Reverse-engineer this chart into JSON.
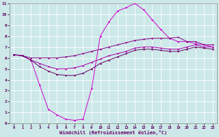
{
  "xlabel": "Windchill (Refroidissement éolien,°C)",
  "xlim": [
    -0.5,
    23.5
  ],
  "ylim": [
    0,
    11
  ],
  "xticks": [
    0,
    1,
    2,
    3,
    4,
    5,
    6,
    7,
    8,
    9,
    10,
    11,
    12,
    13,
    14,
    15,
    16,
    17,
    18,
    19,
    20,
    21,
    22,
    23
  ],
  "yticks": [
    0,
    1,
    2,
    3,
    4,
    5,
    6,
    7,
    8,
    9,
    10,
    11
  ],
  "bg_color": "#cce8e8",
  "grid_color": "#ffffff",
  "series": [
    {
      "x": [
        0,
        1,
        2,
        3,
        4,
        5,
        6,
        7,
        8,
        9,
        10,
        11,
        12,
        13,
        14,
        15,
        16,
        17,
        18,
        19,
        20,
        21,
        22,
        23
      ],
      "y": [
        6.3,
        6.2,
        5.8,
        3.5,
        1.3,
        0.8,
        0.4,
        0.3,
        0.4,
        3.2,
        8.0,
        9.3,
        10.3,
        10.6,
        11.0,
        10.4,
        9.5,
        8.6,
        7.8,
        7.5,
        7.5,
        7.3,
        7.2,
        7.0
      ],
      "color": "#cc00cc"
    },
    {
      "x": [
        0,
        1,
        2,
        3,
        4,
        5,
        6,
        7,
        8,
        9,
        10,
        11,
        12,
        13,
        14,
        15,
        16,
        17,
        18,
        19,
        20,
        21,
        22,
        23
      ],
      "y": [
        6.3,
        6.2,
        6.0,
        6.0,
        6.0,
        6.0,
        6.1,
        6.2,
        6.4,
        6.6,
        6.8,
        7.0,
        7.2,
        7.4,
        7.6,
        7.7,
        7.8,
        7.8,
        7.8,
        7.9,
        7.5,
        7.5,
        7.2,
        7.2
      ],
      "color": "#880088"
    },
    {
      "x": [
        0,
        1,
        2,
        3,
        4,
        5,
        6,
        7,
        8,
        9,
        10,
        11,
        12,
        13,
        14,
        15,
        16,
        17,
        18,
        19,
        20,
        21,
        22,
        23
      ],
      "y": [
        6.3,
        6.2,
        5.8,
        5.5,
        5.2,
        5.0,
        5.0,
        5.1,
        5.3,
        5.6,
        5.9,
        6.2,
        6.4,
        6.6,
        6.9,
        7.0,
        7.0,
        6.9,
        6.8,
        6.8,
        7.0,
        7.2,
        7.0,
        7.0
      ],
      "color": "#aa00aa"
    },
    {
      "x": [
        0,
        1,
        2,
        3,
        4,
        5,
        6,
        7,
        8,
        9,
        10,
        11,
        12,
        13,
        14,
        15,
        16,
        17,
        18,
        19,
        20,
        21,
        22,
        23
      ],
      "y": [
        6.3,
        6.2,
        5.8,
        5.2,
        4.8,
        4.5,
        4.4,
        4.4,
        4.6,
        5.0,
        5.5,
        5.8,
        6.1,
        6.4,
        6.7,
        6.8,
        6.8,
        6.7,
        6.6,
        6.6,
        6.8,
        7.0,
        6.9,
        6.8
      ],
      "color": "#660066"
    }
  ]
}
